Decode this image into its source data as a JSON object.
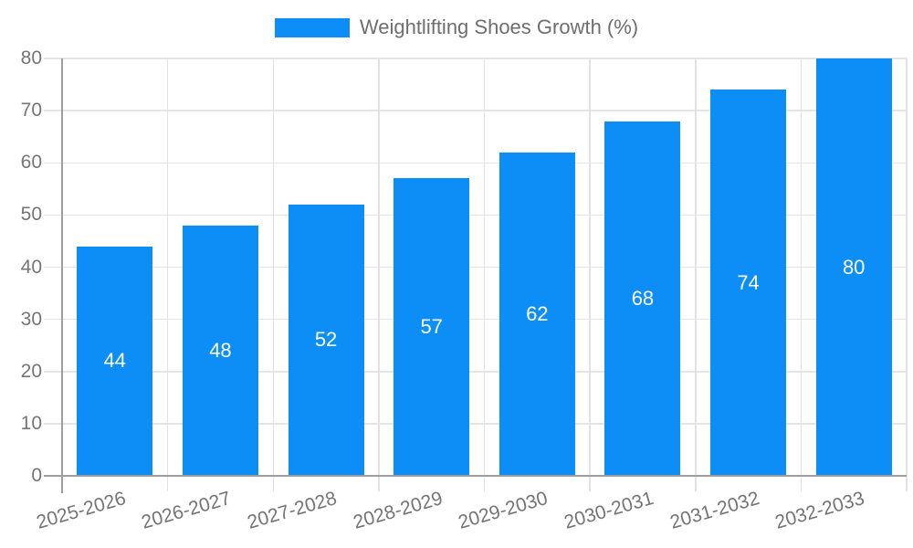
{
  "legend": {
    "label": "Weightlifting Shoes Growth (%)"
  },
  "chart_data": {
    "type": "bar",
    "title": "Weightlifting Shoes Growth (%)",
    "categories": [
      "2025-2026",
      "2026-2027",
      "2027-2028",
      "2028-2029",
      "2029-2030",
      "2030-2031",
      "2031-2032",
      "2032-2033"
    ],
    "values": [
      44,
      48,
      52,
      57,
      62,
      68,
      74,
      80
    ],
    "xlabel": "",
    "ylabel": "",
    "ylim": [
      0,
      80
    ],
    "ytick_step": 10,
    "ytick_labels": [
      "0",
      "10",
      "20",
      "30",
      "40",
      "50",
      "60",
      "70",
      "80"
    ],
    "grid": true,
    "legend_position": "top",
    "colors": {
      "bar": "#0d8ef7",
      "value_label": "#ffffff",
      "axis_line": "#9e9e9e",
      "gridline": "#e5e5e5",
      "tick_text": "#757575"
    }
  }
}
